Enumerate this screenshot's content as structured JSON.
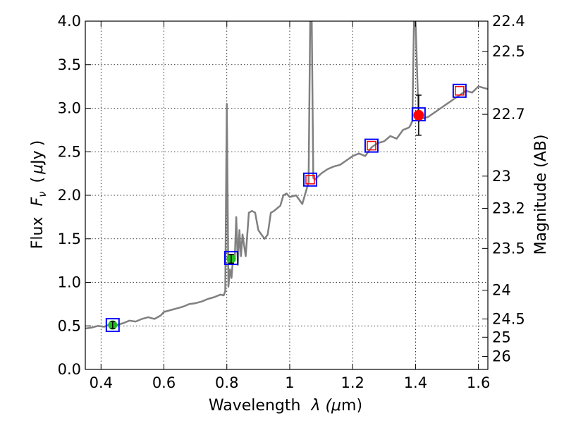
{
  "chart_data": {
    "type": "line",
    "xlabel_parts": [
      "Wavelength",
      "λ (",
      "μ",
      "m)"
    ],
    "ylabel_parts": [
      "Flux",
      "F",
      "ν",
      "(",
      "μ",
      "Jy",
      ")"
    ],
    "y2label": "Magnitude (AB)",
    "xlim": [
      0.35,
      1.63
    ],
    "ylim": [
      0,
      4
    ],
    "x_ticks": [
      0.4,
      0.6,
      0.8,
      1.0,
      1.2,
      1.4,
      1.6
    ],
    "x_tick_labels": [
      "0.4",
      "0.6",
      "0.8",
      "1",
      "1.2",
      "1.4",
      "1.6"
    ],
    "y_ticks": [
      0,
      0.5,
      1.0,
      1.5,
      2.0,
      2.5,
      3.0,
      3.5,
      4.0
    ],
    "y_tick_labels": [
      "0.0",
      "0.5",
      "1.0",
      "1.5",
      "2.0",
      "2.5",
      "3.0",
      "3.5",
      "4.0"
    ],
    "y2_tick_flux": [
      4.0,
      3.65,
      2.93,
      2.22,
      1.85,
      1.39,
      0.91,
      0.58,
      0.37,
      0.15
    ],
    "y2_tick_labels": [
      "22.4",
      "22.5",
      "22.7",
      "23",
      "23.2",
      "23.5",
      "24",
      "24.5",
      "25",
      "26"
    ],
    "grid": true,
    "colors": {
      "spectrum": "#808080",
      "model_box": "#0000ff",
      "observed_green": "#22bb22",
      "observed_red": "#ff0000",
      "upper_square": "#ff0000"
    },
    "spectrum": {
      "x": [
        0.35,
        0.37,
        0.39,
        0.41,
        0.43,
        0.45,
        0.47,
        0.49,
        0.51,
        0.53,
        0.55,
        0.57,
        0.59,
        0.6,
        0.62,
        0.64,
        0.66,
        0.68,
        0.7,
        0.72,
        0.74,
        0.76,
        0.78,
        0.79,
        0.795,
        0.8,
        0.805,
        0.81,
        0.815,
        0.82,
        0.825,
        0.83,
        0.835,
        0.84,
        0.845,
        0.85,
        0.86,
        0.87,
        0.88,
        0.89,
        0.9,
        0.91,
        0.92,
        0.93,
        0.94,
        0.95,
        0.96,
        0.97,
        0.98,
        0.99,
        1.0,
        1.02,
        1.04,
        1.06,
        1.065,
        1.07,
        1.075,
        1.08,
        1.1,
        1.12,
        1.14,
        1.16,
        1.18,
        1.2,
        1.22,
        1.24,
        1.26,
        1.28,
        1.3,
        1.32,
        1.34,
        1.36,
        1.38,
        1.39,
        1.395,
        1.4,
        1.41,
        1.42,
        1.44,
        1.46,
        1.48,
        1.5,
        1.52,
        1.54,
        1.56,
        1.58,
        1.6,
        1.63
      ],
      "y": [
        0.47,
        0.48,
        0.5,
        0.49,
        0.52,
        0.51,
        0.53,
        0.56,
        0.55,
        0.58,
        0.6,
        0.58,
        0.62,
        0.66,
        0.68,
        0.7,
        0.72,
        0.75,
        0.76,
        0.78,
        0.81,
        0.83,
        0.86,
        0.85,
        0.9,
        3.05,
        0.95,
        1.15,
        1.05,
        1.3,
        1.25,
        1.75,
        1.2,
        1.6,
        1.3,
        1.55,
        1.3,
        1.8,
        1.82,
        1.8,
        1.6,
        1.55,
        1.5,
        1.55,
        1.8,
        1.82,
        1.85,
        1.88,
        2.0,
        2.02,
        1.98,
        2.0,
        1.9,
        2.15,
        4.0,
        4.0,
        2.2,
        2.18,
        2.25,
        2.3,
        2.33,
        2.35,
        2.4,
        2.45,
        2.48,
        2.45,
        2.55,
        2.6,
        2.62,
        2.68,
        2.65,
        2.75,
        2.78,
        2.85,
        4.0,
        4.0,
        2.85,
        2.88,
        2.9,
        2.95,
        3.0,
        3.05,
        3.1,
        3.15,
        3.2,
        3.18,
        3.25,
        3.22
      ]
    },
    "photometry": [
      {
        "x": 0.437,
        "model": 0.51,
        "obs": 0.51,
        "err": 0.04,
        "style": "green-circle"
      },
      {
        "x": 0.814,
        "model": 1.28,
        "obs": 1.27,
        "err": 0.05,
        "style": "green-circle"
      },
      {
        "x": 1.065,
        "model": 2.18,
        "obs": 2.18,
        "err": 0,
        "style": "red-square"
      },
      {
        "x": 1.26,
        "model": 2.57,
        "obs": 2.57,
        "err": 0,
        "style": "red-square"
      },
      {
        "x": 1.41,
        "model": 2.93,
        "obs": 2.92,
        "err": 0.23,
        "style": "red-circle"
      },
      {
        "x": 1.54,
        "model": 3.2,
        "obs": 3.2,
        "err": 0,
        "style": "red-square"
      }
    ]
  }
}
